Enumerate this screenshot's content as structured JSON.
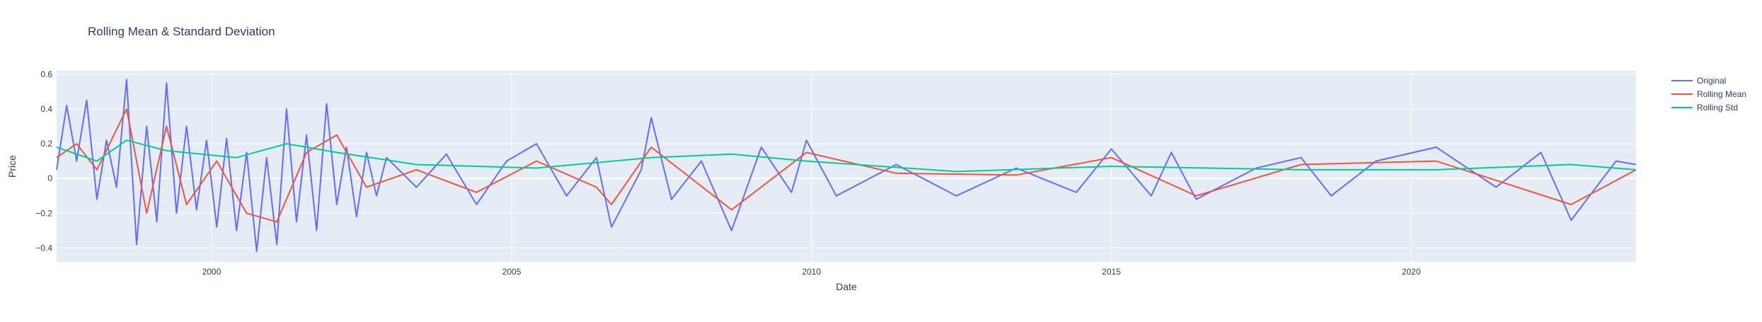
{
  "chart_data": {
    "type": "line",
    "title": "Rolling Mean & Standard Deviation",
    "xlabel": "Date",
    "ylabel": "Price",
    "x_start": "1997-06-01",
    "x_end": "2023-10-01",
    "xlim": [
      "1997-06-01",
      "2023-10-01"
    ],
    "ylim": [
      -0.48,
      0.62
    ],
    "x_ticks": [
      "2000",
      "2005",
      "2010",
      "2015",
      "2020"
    ],
    "y_ticks": [
      -0.4,
      -0.2,
      0,
      0.2,
      0.4,
      0.6
    ],
    "y_tick_labels": [
      "−0.4",
      "−0.2",
      "0",
      "0.2",
      "0.4",
      "0.6"
    ],
    "grid": true,
    "legend_position": "top-right",
    "series": [
      {
        "name": "Original",
        "color": "#636efa",
        "points": [
          [
            "1997-06",
            0.05
          ],
          [
            "1997-08",
            0.42
          ],
          [
            "1997-10",
            0.1
          ],
          [
            "1997-12",
            0.45
          ],
          [
            "1998-02",
            -0.12
          ],
          [
            "1998-04",
            0.22
          ],
          [
            "1998-06",
            -0.05
          ],
          [
            "1998-08",
            0.57
          ],
          [
            "1998-10",
            -0.38
          ],
          [
            "1998-12",
            0.3
          ],
          [
            "1999-02",
            -0.25
          ],
          [
            "1999-04",
            0.55
          ],
          [
            "1999-06",
            -0.2
          ],
          [
            "1999-08",
            0.3
          ],
          [
            "1999-10",
            -0.18
          ],
          [
            "1999-12",
            0.22
          ],
          [
            "2000-02",
            -0.28
          ],
          [
            "2000-04",
            0.23
          ],
          [
            "2000-06",
            -0.3
          ],
          [
            "2000-08",
            0.15
          ],
          [
            "2000-10",
            -0.42
          ],
          [
            "2000-12",
            0.12
          ],
          [
            "2001-02",
            -0.38
          ],
          [
            "2001-04",
            0.4
          ],
          [
            "2001-06",
            -0.25
          ],
          [
            "2001-08",
            0.25
          ],
          [
            "2001-10",
            -0.3
          ],
          [
            "2001-12",
            0.43
          ],
          [
            "2002-02",
            -0.15
          ],
          [
            "2002-04",
            0.18
          ],
          [
            "2002-06",
            -0.22
          ],
          [
            "2002-08",
            0.15
          ],
          [
            "2002-10",
            -0.1
          ],
          [
            "2002-12",
            0.12
          ],
          [
            "2003-06",
            -0.05
          ],
          [
            "2003-12",
            0.14
          ],
          [
            "2004-06",
            -0.15
          ],
          [
            "2004-12",
            0.1
          ],
          [
            "2005-06",
            0.2
          ],
          [
            "2005-12",
            -0.1
          ],
          [
            "2006-06",
            0.12
          ],
          [
            "2006-09",
            -0.28
          ],
          [
            "2007-03",
            0.05
          ],
          [
            "2007-05",
            0.35
          ],
          [
            "2007-09",
            -0.12
          ],
          [
            "2008-03",
            0.1
          ],
          [
            "2008-09",
            -0.3
          ],
          [
            "2009-03",
            0.18
          ],
          [
            "2009-09",
            -0.08
          ],
          [
            "2009-12",
            0.22
          ],
          [
            "2010-06",
            -0.1
          ],
          [
            "2011-06",
            0.08
          ],
          [
            "2012-06",
            -0.1
          ],
          [
            "2013-06",
            0.06
          ],
          [
            "2014-06",
            -0.08
          ],
          [
            "2015-01",
            0.17
          ],
          [
            "2015-09",
            -0.1
          ],
          [
            "2016-01",
            0.15
          ],
          [
            "2016-06",
            -0.12
          ],
          [
            "2017-06",
            0.06
          ],
          [
            "2018-03",
            0.12
          ],
          [
            "2018-09",
            -0.1
          ],
          [
            "2019-06",
            0.1
          ],
          [
            "2020-06",
            0.18
          ],
          [
            "2021-06",
            -0.05
          ],
          [
            "2022-03",
            0.15
          ],
          [
            "2022-09",
            -0.24
          ],
          [
            "2023-06",
            0.1
          ],
          [
            "2023-10",
            0.08
          ]
        ]
      },
      {
        "name": "Rolling Mean",
        "color": "#ef553b",
        "points": [
          [
            "1997-06",
            0.12
          ],
          [
            "1997-10",
            0.2
          ],
          [
            "1998-02",
            0.05
          ],
          [
            "1998-08",
            0.4
          ],
          [
            "1998-12",
            -0.2
          ],
          [
            "1999-04",
            0.3
          ],
          [
            "1999-08",
            -0.15
          ],
          [
            "2000-02",
            0.1
          ],
          [
            "2000-08",
            -0.2
          ],
          [
            "2001-02",
            -0.25
          ],
          [
            "2001-08",
            0.15
          ],
          [
            "2002-02",
            0.25
          ],
          [
            "2002-08",
            -0.05
          ],
          [
            "2003-06",
            0.05
          ],
          [
            "2004-06",
            -0.08
          ],
          [
            "2005-06",
            0.1
          ],
          [
            "2006-06",
            -0.05
          ],
          [
            "2006-09",
            -0.15
          ],
          [
            "2007-05",
            0.18
          ],
          [
            "2008-09",
            -0.18
          ],
          [
            "2009-12",
            0.15
          ],
          [
            "2011-06",
            0.03
          ],
          [
            "2013-06",
            0.02
          ],
          [
            "2015-01",
            0.12
          ],
          [
            "2016-06",
            -0.1
          ],
          [
            "2018-03",
            0.08
          ],
          [
            "2020-06",
            0.1
          ],
          [
            "2022-09",
            -0.15
          ],
          [
            "2023-10",
            0.05
          ]
        ]
      },
      {
        "name": "Rolling Std",
        "color": "#00cc96",
        "points": [
          [
            "1997-06",
            0.18
          ],
          [
            "1998-02",
            0.1
          ],
          [
            "1998-08",
            0.22
          ],
          [
            "1999-04",
            0.16
          ],
          [
            "2000-06",
            0.12
          ],
          [
            "2001-04",
            0.2
          ],
          [
            "2002-02",
            0.15
          ],
          [
            "2003-06",
            0.08
          ],
          [
            "2005-06",
            0.06
          ],
          [
            "2007-05",
            0.12
          ],
          [
            "2008-09",
            0.14
          ],
          [
            "2009-12",
            0.1
          ],
          [
            "2012-06",
            0.04
          ],
          [
            "2015-01",
            0.07
          ],
          [
            "2018-03",
            0.05
          ],
          [
            "2020-06",
            0.05
          ],
          [
            "2022-09",
            0.08
          ],
          [
            "2023-10",
            0.05
          ]
        ]
      }
    ]
  }
}
